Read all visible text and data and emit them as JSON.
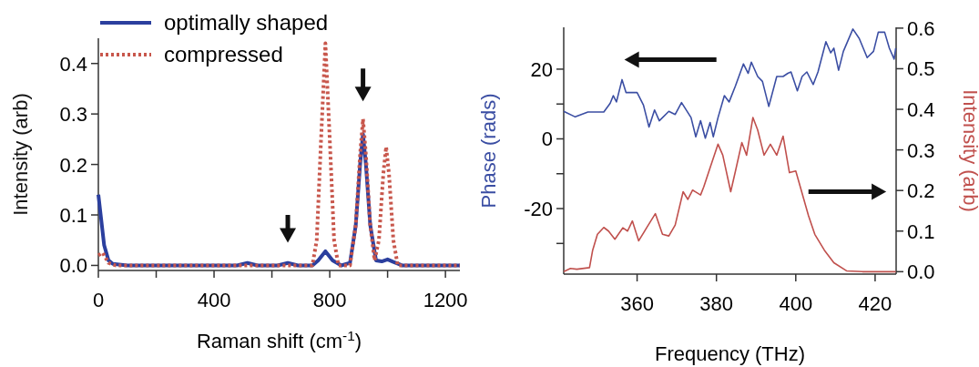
{
  "chart_data": [
    {
      "type": "line",
      "xlabel": "Raman shift (cm$^{-1}$)",
      "ylabel": "Intensity (arb)",
      "xlim": [
        0,
        1250
      ],
      "ylim": [
        -0.01,
        0.45
      ],
      "xticks": [
        0,
        {
          "value": 200,
          "label": null
        },
        400,
        {
          "value": 600,
          "label": null
        },
        800,
        {
          "value": 1000,
          "label": null
        },
        1200
      ],
      "yticks": [
        {
          "value": 0,
          "label": "0.0"
        },
        0.1,
        0.2,
        0.3,
        0.4
      ],
      "legend": "top left",
      "series": [
        {
          "name": "optimally shaped",
          "color": "#2b3f9e",
          "line_style": "solid",
          "x": [
            0,
            10,
            20,
            35,
            50,
            100,
            480,
            515,
            550,
            620,
            655,
            690,
            740,
            760,
            785,
            810,
            840,
            870,
            890,
            905,
            915,
            925,
            940,
            960,
            980,
            1000,
            1020,
            1050,
            1250
          ],
          "values": [
            0.14,
            0.09,
            0.04,
            0.01,
            0.003,
            0,
            0,
            0.005,
            0,
            0,
            0.005,
            0,
            0,
            0.01,
            0.028,
            0.01,
            0,
            0.005,
            0.08,
            0.2,
            0.26,
            0.2,
            0.08,
            0.01,
            0.008,
            0.012,
            0.007,
            0,
            0
          ]
        },
        {
          "name": "compressed",
          "color": "#c8574c",
          "line_style": "dotted",
          "x": [
            0,
            15,
            35,
            60,
            740,
            755,
            770,
            785,
            800,
            815,
            830,
            870,
            890,
            905,
            915,
            925,
            940,
            955,
            970,
            985,
            995,
            1005,
            1020,
            1035,
            1250
          ],
          "values": [
            0.02,
            0.025,
            0.005,
            0,
            0,
            0.05,
            0.25,
            0.44,
            0.25,
            0.05,
            0,
            0,
            0.08,
            0.22,
            0.29,
            0.22,
            0.08,
            0.01,
            0.05,
            0.18,
            0.235,
            0.18,
            0.05,
            0,
            0
          ]
        }
      ]
    },
    {
      "type": "line",
      "xlabel": "Frequency (THz)",
      "ylabel": "Phase (rads)",
      "y2label": "Intensity (arb)",
      "xlim": [
        341.5,
        425.3
      ],
      "ylim": [
        -38.8,
        32
      ],
      "y2lim": [
        -0.006,
        0.602
      ],
      "xticks": [
        360,
        380,
        400,
        420
      ],
      "yticks": [
        {
          "value": -30,
          "label": null
        },
        -20,
        {
          "value": -10,
          "label": null
        },
        0,
        {
          "value": 10,
          "label": null
        },
        20
      ],
      "y2ticks": [
        {
          "value": 0,
          "label": "0.0"
        },
        0.1,
        0.2,
        0.3,
        0.4,
        0.5,
        0.6
      ],
      "series": [
        {
          "color": "#3b4ea3",
          "axis": "y",
          "x": [
            341.5,
            344.4,
            347.6,
            351.6,
            353.2,
            354,
            354.8,
            356.2,
            357.2,
            360,
            361.6,
            363,
            364.4,
            365.6,
            368,
            369.6,
            371.2,
            373.6,
            374.8,
            376,
            377.2,
            378.4,
            379.2,
            380.4,
            382,
            383.2,
            384.8,
            386.8,
            388,
            388.8,
            390.4,
            391.6,
            393.2,
            395.2,
            396.8,
            398,
            398.8,
            400.4,
            401.6,
            402.8,
            404.4,
            405.6,
            407.6,
            408.8,
            409.6,
            410.8,
            412,
            414.4,
            416,
            418,
            419.6,
            420.8,
            422.4,
            423.6,
            424.8,
            425.2
          ],
          "values": [
            7.9,
            6.3,
            7.7,
            7.7,
            10.2,
            12.4,
            10.6,
            17,
            13.3,
            13.3,
            9.7,
            3.4,
            8.3,
            5.2,
            7.9,
            7,
            10.4,
            6.1,
            0.6,
            5.2,
            0.2,
            4.7,
            0.6,
            6.1,
            12.4,
            10.6,
            15.2,
            21.5,
            18.8,
            22,
            17.9,
            16.5,
            9.3,
            17.9,
            17.9,
            18.8,
            19.2,
            13.8,
            17.9,
            19.2,
            15.6,
            19.2,
            27.9,
            24.7,
            26,
            19.7,
            25.1,
            31.5,
            28.8,
            23.3,
            25.1,
            30.6,
            30.6,
            26,
            22.9,
            26
          ]
        },
        {
          "color": "#c0504d",
          "axis": "y2",
          "x": [
            341.5,
            343.2,
            344.8,
            348,
            348.8,
            350,
            351.6,
            352.8,
            354.4,
            356.4,
            357.6,
            358.8,
            360.4,
            362.4,
            364.6,
            366.4,
            368,
            369.6,
            371.6,
            372.8,
            374,
            376,
            376.8,
            378.4,
            380.4,
            381.6,
            383.6,
            384.8,
            386.4,
            387.6,
            389.2,
            390.4,
            392,
            393.6,
            395.2,
            396.8,
            398.4,
            400,
            401.6,
            403.2,
            404.8,
            407.2,
            409.6,
            412.8,
            416.8,
            425.2
          ],
          "values": [
            0,
            0.008,
            0.006,
            0.01,
            0.053,
            0.092,
            0.109,
            0.1,
            0.08,
            0.108,
            0.1,
            0.125,
            0.076,
            0.108,
            0.143,
            0.092,
            0.088,
            0.115,
            0.197,
            0.178,
            0.201,
            0.189,
            0.209,
            0.256,
            0.314,
            0.287,
            0.197,
            0.248,
            0.318,
            0.287,
            0.38,
            0.349,
            0.287,
            0.314,
            0.287,
            0.334,
            0.244,
            0.248,
            0.193,
            0.138,
            0.092,
            0.053,
            0.022,
            0.002,
            0,
            0
          ]
        }
      ]
    }
  ]
}
